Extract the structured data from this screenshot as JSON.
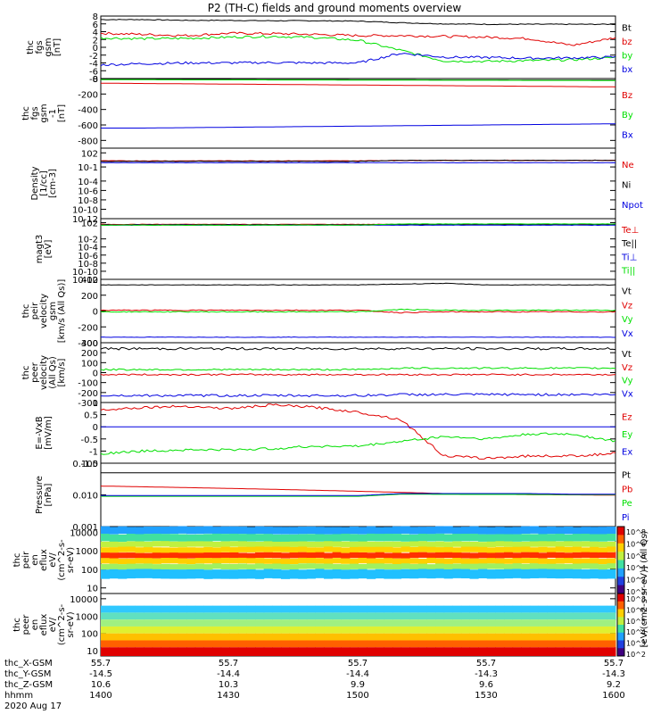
{
  "title": "P2 (TH-C) fields and ground moments overview",
  "colors": {
    "black": "#000000",
    "red": "#e00000",
    "green": "#00e000",
    "blue": "#0000e0",
    "axis": "#000000"
  },
  "chart_data": [
    {
      "type": "line",
      "name": "fgs",
      "ylabel": [
        "thc",
        "fgs",
        "gsm",
        "[nT]"
      ],
      "ylim": [
        -8,
        8
      ],
      "yticks": [
        8,
        6,
        4,
        2,
        0,
        -2,
        -4,
        -6,
        -8
      ],
      "series": [
        {
          "name": "Bt",
          "color": "black",
          "base": [
            7.1,
            7.1,
            6.9,
            6.9,
            6.8,
            6.8,
            6.7,
            6.3,
            6.0,
            5.9,
            5.9,
            5.9,
            5.9
          ],
          "noise": 0.1
        },
        {
          "name": "bz",
          "color": "red",
          "base": [
            3.6,
            3.3,
            3.0,
            3.6,
            3.5,
            3.3,
            3.0,
            3.0,
            2.8,
            2.6,
            2.2,
            0.5,
            2.5
          ],
          "noise": 0.3
        },
        {
          "name": "by",
          "color": "green",
          "base": [
            2.4,
            2.2,
            2.3,
            2.6,
            2.8,
            2.5,
            1.8,
            -0.8,
            -3.5,
            -3.6,
            -3.4,
            -3.2,
            -2.6
          ],
          "noise": 0.3
        },
        {
          "name": "bx",
          "color": "blue",
          "base": [
            -4.5,
            -4.2,
            -4.0,
            -4.0,
            -3.9,
            -4.0,
            -4.0,
            -1.5,
            -2.5,
            -2.6,
            -2.8,
            -2.7,
            -2.5
          ],
          "noise": 0.3
        }
      ],
      "legend": [
        "Bt",
        "bz",
        "by",
        "bx"
      ]
    },
    {
      "type": "line",
      "name": "fgs-gsm-1",
      "ylabel": [
        "thc",
        "fgs",
        "gsm",
        "-1",
        "[nT]"
      ],
      "ylim": [
        -900,
        0
      ],
      "yticks": [
        0,
        -200,
        -400,
        -600,
        -800
      ],
      "series": [
        {
          "name": "Bt",
          "color": "black",
          "base": [
            -10,
            -10,
            -12,
            -12,
            -14,
            -14,
            -16,
            -16,
            -18,
            -18,
            -20,
            -20,
            -20
          ],
          "noise": 0
        },
        {
          "name": "Bz",
          "color": "red",
          "base": [
            -60,
            -64,
            -68,
            -72,
            -76,
            -80,
            -84,
            -88,
            -92,
            -96,
            -100,
            -104,
            -108
          ],
          "noise": 0
        },
        {
          "name": "By",
          "color": "green",
          "base": [
            -15,
            -15,
            -17,
            -17,
            -18,
            -18,
            -20,
            -20,
            -22,
            -22,
            -24,
            -24,
            -26
          ],
          "noise": 0
        },
        {
          "name": "Bx",
          "color": "blue",
          "base": [
            -640,
            -640,
            -635,
            -630,
            -625,
            -620,
            -615,
            -610,
            -605,
            -600,
            -595,
            -590,
            -585
          ],
          "noise": 0
        }
      ],
      "legend": [
        "Bz",
        "By",
        "Bx"
      ]
    },
    {
      "type": "line",
      "name": "density",
      "ylabel": [
        "Density",
        "[1/cc]",
        "[cm-3]"
      ],
      "ylim": [
        -12,
        3
      ],
      "yticks": [
        2,
        -1,
        -4,
        -6,
        -8,
        -10,
        -12
      ],
      "log": true,
      "series": [
        {
          "name": "Ne",
          "color": "red",
          "base": [
            0.3,
            0.3,
            0.3,
            0.3,
            0.3,
            0.3,
            0.3,
            0.4,
            0.4,
            0.4,
            0.4,
            0.4,
            0.4
          ],
          "noise": 0.05
        },
        {
          "name": "Ni",
          "color": "black",
          "base": [
            0.2,
            0.2,
            0.2,
            0.2,
            0.2,
            0.2,
            0.2,
            0.4,
            0.4,
            0.4,
            0.4,
            0.4,
            0.4
          ],
          "noise": 0.05
        },
        {
          "name": "Npot",
          "color": "blue",
          "base": [
            -0.1,
            -0.1,
            -0.1,
            -0.1,
            -0.1,
            -0.1,
            -0.1,
            -0.1,
            -0.1,
            -0.1,
            -0.1,
            -0.1,
            -0.1
          ],
          "noise": 0.03
        }
      ],
      "legend": [
        "Ne",
        "Ni",
        "Npot"
      ]
    },
    {
      "type": "line",
      "name": "magt3",
      "ylabel": [
        "magt3",
        "[eV]"
      ],
      "ylim": [
        -12,
        3
      ],
      "yticks": [
        2,
        -2,
        -4,
        -6,
        -8,
        -10,
        -12
      ],
      "log": true,
      "series": [
        {
          "name": "Te⊥",
          "color": "red",
          "base": [
            1.6,
            1.6,
            1.6,
            1.6,
            1.6,
            1.6,
            1.6,
            1.6,
            1.6,
            1.6,
            1.6,
            1.6,
            1.6
          ],
          "noise": 0.05
        },
        {
          "name": "Te||",
          "color": "black",
          "base": [
            1.5,
            1.5,
            1.5,
            1.5,
            1.5,
            1.5,
            1.5,
            1.5,
            1.5,
            1.5,
            1.5,
            1.5,
            1.5
          ],
          "noise": 0.05
        },
        {
          "name": "Ti⊥",
          "color": "blue",
          "base": [
            1.4,
            1.4,
            1.4,
            1.4,
            1.4,
            1.4,
            1.4,
            1.4,
            1.4,
            1.4,
            1.4,
            1.4,
            1.4
          ],
          "noise": 0.05
        },
        {
          "name": "Ti||",
          "color": "green",
          "base": [
            1.4,
            1.4,
            1.4,
            1.4,
            1.4,
            1.4,
            1.4,
            1.7,
            1.7,
            1.7,
            1.7,
            1.7,
            1.7
          ],
          "noise": 0.05
        }
      ],
      "legend": [
        "Te⊥",
        "Te||",
        "Ti⊥",
        "Ti||"
      ]
    },
    {
      "type": "line",
      "name": "peir-velocity",
      "ylabel": [
        "thc",
        "peir",
        "velocity",
        "gsm",
        "[km/s (All Qs)]"
      ],
      "ylim": [
        -400,
        400
      ],
      "yticks": [
        400,
        200,
        0,
        -200,
        -400
      ],
      "series": [
        {
          "name": "Vt",
          "color": "black",
          "base": [
            330,
            330,
            330,
            330,
            330,
            330,
            330,
            340,
            350,
            330,
            330,
            330,
            330
          ],
          "noise": 3
        },
        {
          "name": "Vz",
          "color": "red",
          "base": [
            10,
            10,
            10,
            10,
            10,
            10,
            10,
            -20,
            -10,
            -10,
            -10,
            -10,
            -10
          ],
          "noise": 6
        },
        {
          "name": "Vy",
          "color": "green",
          "base": [
            -10,
            -10,
            -10,
            -10,
            -10,
            -10,
            -10,
            20,
            10,
            10,
            10,
            10,
            10
          ],
          "noise": 6
        },
        {
          "name": "Vx",
          "color": "blue",
          "base": [
            -330,
            -330,
            -330,
            -330,
            -330,
            -330,
            -330,
            -330,
            -330,
            -330,
            -330,
            -330,
            -330
          ],
          "noise": 3
        }
      ],
      "legend": [
        "Vt",
        "Vz",
        "Vy",
        "Vx"
      ]
    },
    {
      "type": "line",
      "name": "peer-velocity",
      "ylabel": [
        "thc",
        "peer",
        "velocity",
        "(All Qs)",
        "[km/s]"
      ],
      "ylim": [
        -300,
        300
      ],
      "yticks": [
        300,
        200,
        100,
        0,
        -100,
        -200,
        -300
      ],
      "series": [
        {
          "name": "Vt",
          "color": "black",
          "base": [
            240,
            240,
            240,
            240,
            240,
            240,
            240,
            240,
            240,
            240,
            240,
            240,
            240
          ],
          "noise": 12
        },
        {
          "name": "Vz",
          "color": "red",
          "base": [
            -20,
            -20,
            -20,
            -20,
            -20,
            -20,
            -20,
            -20,
            -20,
            -20,
            -20,
            -20,
            -20
          ],
          "noise": 8
        },
        {
          "name": "Vy",
          "color": "green",
          "base": [
            30,
            30,
            30,
            30,
            30,
            30,
            30,
            45,
            45,
            45,
            45,
            45,
            45
          ],
          "noise": 8
        },
        {
          "name": "Vx",
          "color": "blue",
          "base": [
            -230,
            -230,
            -230,
            -230,
            -230,
            -230,
            -230,
            -220,
            -220,
            -220,
            -220,
            -220,
            -220
          ],
          "noise": 12
        }
      ],
      "legend": [
        "Vt",
        "Vz",
        "Vy",
        "Vx"
      ]
    },
    {
      "type": "line",
      "name": "efield",
      "ylabel": [
        "E=-VxB",
        "[mV/m]"
      ],
      "ylim": [
        -1.5,
        1.0
      ],
      "yticks": [
        1.0,
        0.5,
        0.0,
        -0.5,
        -1.0,
        -1.5
      ],
      "series": [
        {
          "name": "Ez",
          "color": "red",
          "base": [
            0.7,
            0.8,
            0.85,
            0.75,
            0.9,
            0.8,
            0.6,
            0.3,
            -1.2,
            -1.3,
            -1.2,
            -1.2,
            -1.1
          ],
          "noise": 0.05
        },
        {
          "name": "Ey",
          "color": "blue",
          "base": [
            0,
            0,
            0,
            0,
            0,
            0,
            0,
            0,
            0,
            0,
            0,
            0,
            0
          ],
          "noise": 0
        },
        {
          "name": "Ex",
          "color": "green",
          "base": [
            -1.1,
            -1.0,
            -0.95,
            -0.95,
            -0.9,
            -0.8,
            -0.8,
            -0.6,
            -0.4,
            -0.5,
            -0.3,
            -0.3,
            -0.6
          ],
          "noise": 0.05
        }
      ],
      "legend": [
        "Ez",
        "Ey",
        "Ex"
      ]
    },
    {
      "type": "line",
      "name": "pressure",
      "ylabel": [
        "Pressure",
        "[nPa]"
      ],
      "ylim": [
        0.001,
        0.1
      ],
      "yticks": [
        0.1,
        0.01,
        0.001
      ],
      "log": true,
      "series": [
        {
          "name": "Pt",
          "color": "black",
          "base": [
            0.05,
            0.05,
            0.05,
            0.05,
            0.05,
            0.05,
            0.05,
            0.05,
            0.05,
            0.05,
            0.05,
            0.05,
            0.05
          ],
          "noise": 0
        },
        {
          "name": "Pb",
          "color": "red",
          "base": [
            0.019,
            0.018,
            0.017,
            0.016,
            0.015,
            0.014,
            0.013,
            0.012,
            0.011,
            0.0105,
            0.0102,
            0.01,
            0.0098
          ],
          "noise": 0
        },
        {
          "name": "Pe",
          "color": "green",
          "base": [
            0.009,
            0.009,
            0.009,
            0.009,
            0.009,
            0.009,
            0.009,
            0.0105,
            0.0104,
            0.0103,
            0.0103,
            0.0102,
            0.0102
          ],
          "noise": 0
        },
        {
          "name": "Pi",
          "color": "blue",
          "base": [
            0.0095,
            0.0095,
            0.0095,
            0.0095,
            0.0095,
            0.0095,
            0.0095,
            0.011,
            0.011,
            0.011,
            0.011,
            0.0105,
            0.0105
          ],
          "noise": 0
        }
      ],
      "legend": [
        "Pt",
        "Pb",
        "Pe",
        "Pi"
      ]
    },
    {
      "type": "heatmap",
      "name": "peir-en-eflux",
      "ylabel": [
        "thc",
        "peir",
        "en",
        "eflux",
        "eV/",
        "(cm^2-s-",
        "sr-eV)"
      ],
      "ylim": [
        5,
        20000
      ],
      "yticks": [
        10000,
        1000,
        100,
        10
      ],
      "log": true,
      "bands": [
        {
          "low": 1.5,
          "high": 4.3,
          "color": "band"
        },
        {
          "low": 2.0,
          "high": 3.4,
          "color": "hot"
        }
      ],
      "colorbar": [
        "10^8",
        "10^6",
        "10^5",
        "10^4",
        "10^3",
        "10^2"
      ]
    },
    {
      "type": "heatmap",
      "name": "peer-en-eflux",
      "ylabel": [
        "thc",
        "peer",
        "en",
        "eflux",
        "eV/",
        "(cm^2-s-",
        "sr-eV)"
      ],
      "ylim": [
        5,
        20000
      ],
      "yticks": [
        10000,
        1000,
        100,
        10
      ],
      "log": true,
      "bands": [
        {
          "low": 0.7,
          "high": 3.6,
          "color": "band2"
        }
      ],
      "colorbar": [
        "10^8",
        "10^6",
        "10^5",
        "10^4",
        "10^3",
        "10^2"
      ]
    }
  ],
  "colorbar_unit": "[eV/(cm2-s-sr-eV)] (All Qs)",
  "xaxis": {
    "rows": [
      {
        "label": "thc_X-GSM",
        "values": [
          "55.7",
          "55.7",
          "55.7",
          "55.7",
          "55.7"
        ]
      },
      {
        "label": "thc_Y-GSM",
        "values": [
          "-14.5",
          "-14.4",
          "-14.4",
          "-14.3",
          "-14.3"
        ]
      },
      {
        "label": "thc_Z-GSM",
        "values": [
          "10.6",
          "10.3",
          "9.9",
          "9.6",
          "9.2"
        ]
      },
      {
        "label": "hhmm",
        "values": [
          "1400",
          "1430",
          "1500",
          "1530",
          "1600"
        ]
      }
    ],
    "date": "2020 Aug 17"
  }
}
